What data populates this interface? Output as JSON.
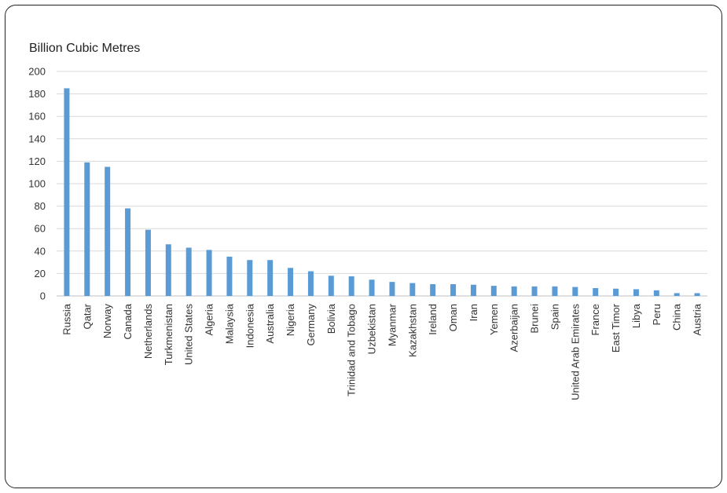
{
  "chart_data": {
    "type": "bar",
    "title": "",
    "ylabel": "Billion Cubic Metres",
    "xlabel": "",
    "ylim": [
      0,
      200
    ],
    "yticks": [
      0,
      20,
      40,
      60,
      80,
      100,
      120,
      140,
      160,
      180,
      200
    ],
    "grid": true,
    "bar_color": "#5b9bd5",
    "categories": [
      "Russia",
      "Qatar",
      "Norway",
      "Canada",
      "Netherlands",
      "Turkmenistan",
      "United States",
      "Algeria",
      "Malaysia",
      "Indonesia",
      "Australia",
      "Nigeria",
      "Germany",
      "Bolivia",
      "Trinidad and Tobago",
      "Uzbekistan",
      "Myanmar",
      "Kazakhstan",
      "Ireland",
      "Oman",
      "Iran",
      "Yemen",
      "Azerbaijan",
      "Brunei",
      "Spain",
      "United Arab Emirates",
      "France",
      "East Timor",
      "Libya",
      "Peru",
      "China",
      "Austria"
    ],
    "values": [
      185,
      119,
      115,
      78,
      59,
      46,
      43,
      41,
      35,
      32,
      32,
      25,
      22,
      18,
      17.5,
      14.5,
      12.5,
      11.5,
      10.5,
      10.5,
      10,
      9,
      8.5,
      8.5,
      8.5,
      8,
      7,
      6.5,
      6,
      5,
      2.5,
      2.5
    ]
  }
}
